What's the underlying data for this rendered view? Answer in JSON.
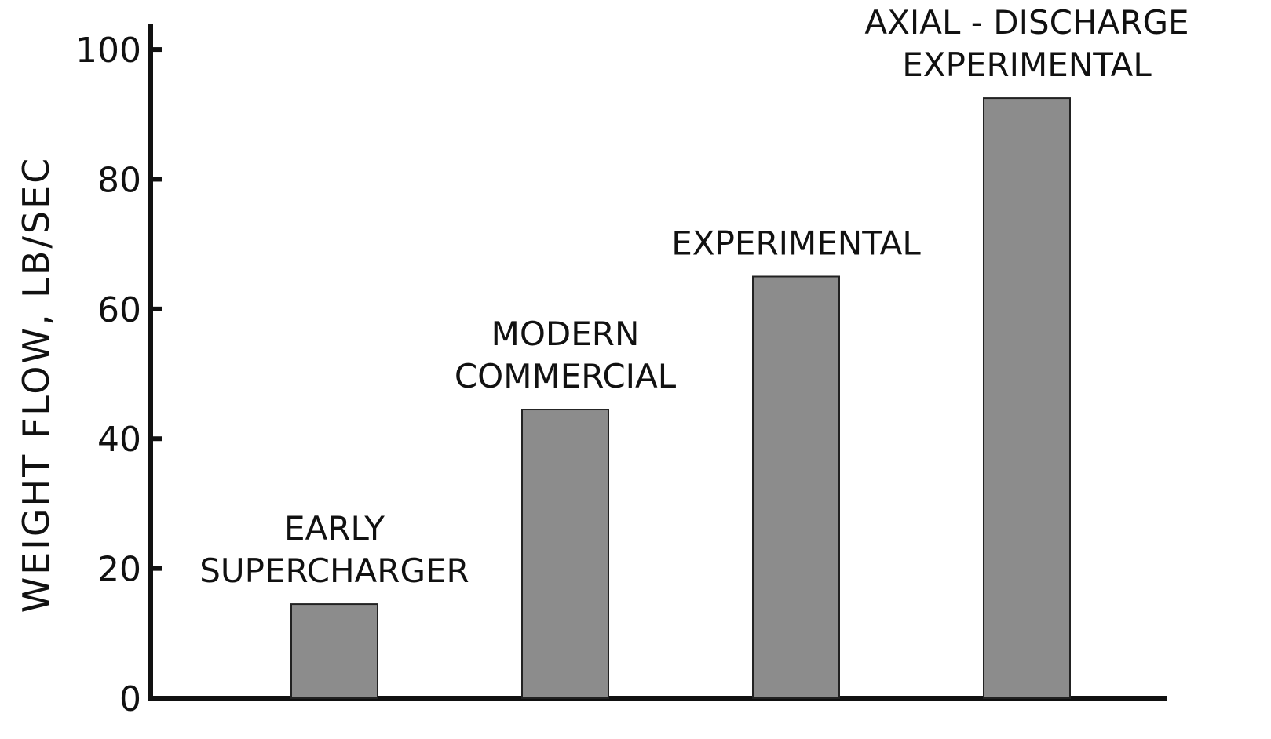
{
  "chart_data": {
    "type": "bar",
    "y_label": "WEIGHT FLOW, LB/SEC",
    "categories": [
      "EARLY\nSUPERCHARGER",
      "MODERN\nCOMMERCIAL",
      "EXPERIMENTAL",
      "AXIAL - DISCHARGE\nEXPERIMENTAL"
    ],
    "values": [
      14.5,
      44.5,
      65,
      92.5
    ],
    "color": "#8c8c8c",
    "ylim": [
      0,
      104
    ],
    "yticks": [
      0,
      20,
      40,
      60,
      80,
      100
    ],
    "grid": false
  }
}
